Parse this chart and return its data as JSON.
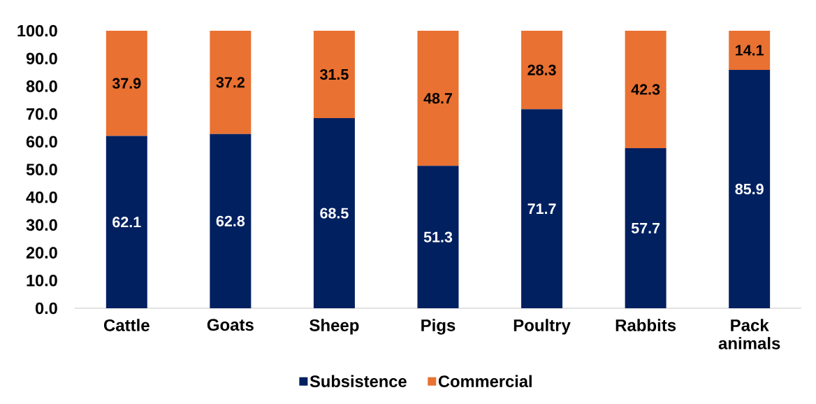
{
  "chart_data": {
    "type": "bar",
    "stacked": true,
    "categories": [
      "Cattle",
      "Goats",
      "Sheep",
      "Pigs",
      "Poultry",
      "Rabbits",
      "Pack animals"
    ],
    "series": [
      {
        "name": "Subsistence",
        "color": "#002060",
        "values": [
          62.1,
          62.8,
          68.5,
          51.3,
          71.7,
          57.7,
          85.9
        ]
      },
      {
        "name": "Commercial",
        "color": "#E97132",
        "values": [
          37.9,
          37.2,
          31.5,
          48.7,
          28.3,
          42.3,
          14.1
        ]
      }
    ],
    "ylim": [
      0,
      100
    ],
    "yticks": [
      {
        "value": 0,
        "label": "0.0"
      },
      {
        "value": 10,
        "label": "10.0"
      },
      {
        "value": 20,
        "label": "20.0"
      },
      {
        "value": 30,
        "label": "30.0"
      },
      {
        "value": 40,
        "label": "40.0"
      },
      {
        "value": 50,
        "label": "50.0"
      },
      {
        "value": 60,
        "label": "60.0"
      },
      {
        "value": 70,
        "label": "70.0"
      },
      {
        "value": 80,
        "label": "80.0"
      },
      {
        "value": 90,
        "label": "90.0"
      },
      {
        "value": 100,
        "label": "100.0"
      }
    ],
    "data_labels": true,
    "legend": "bottom"
  }
}
